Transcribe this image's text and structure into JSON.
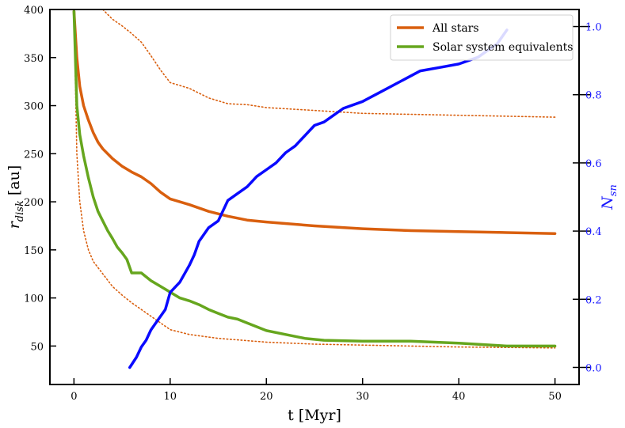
{
  "chart_data": {
    "type": "line",
    "xlabel": "t [Myr]",
    "ylabel_left_main": "r",
    "ylabel_left_sub": "disk",
    "ylabel_left_unit": " [au]",
    "ylabel_right_main": "N",
    "ylabel_right_sub": "sn",
    "xlim": [
      -2.5,
      52.5
    ],
    "ylim_left": [
      10,
      400
    ],
    "ylim_right": [
      -0.05,
      1.05
    ],
    "xticks": [
      0,
      10,
      20,
      30,
      40,
      50
    ],
    "yticks_left": [
      50,
      100,
      150,
      200,
      250,
      300,
      350,
      400
    ],
    "yticks_right": [
      0.0,
      0.2,
      0.4,
      0.6,
      0.8,
      1.0
    ],
    "yticks_right_labels": [
      "0.0",
      "0.2",
      "0.4",
      "0.6",
      "0.8",
      "1.0"
    ],
    "legend": {
      "placement": "top-right",
      "entries": [
        {
          "label": "All stars",
          "color": "#d95f0e"
        },
        {
          "label": "Solar system equivalents",
          "color": "#66a61e"
        }
      ]
    },
    "series": [
      {
        "name": "All stars",
        "axis": "left",
        "color": "#d95f0e",
        "style": "solid",
        "x": [
          0,
          0.3,
          0.6,
          1,
          1.5,
          2,
          2.5,
          3,
          4,
          5,
          6,
          7,
          8,
          9,
          10,
          12,
          14,
          16,
          18,
          20,
          25,
          30,
          35,
          40,
          45,
          50
        ],
        "y": [
          398,
          350,
          320,
          300,
          285,
          272,
          262,
          255,
          245,
          237,
          231,
          226,
          219,
          210,
          203,
          197,
          190,
          185,
          181,
          179,
          175,
          172,
          170,
          169,
          168,
          167
        ]
      },
      {
        "name": "All stars upper bound",
        "axis": "left",
        "color": "#d95f0e",
        "style": "dotted",
        "x": [
          3,
          4,
          5,
          6,
          7,
          8,
          9,
          10,
          12,
          14,
          16,
          18,
          20,
          25,
          30,
          35,
          40,
          45,
          50
        ],
        "y": [
          400,
          390,
          383,
          375,
          366,
          352,
          337,
          324,
          318,
          308,
          302,
          301,
          298,
          295,
          292,
          291,
          290,
          289,
          288
        ]
      },
      {
        "name": "All stars lower bound",
        "axis": "left",
        "color": "#d95f0e",
        "style": "dotted",
        "x": [
          0,
          0.3,
          0.6,
          1,
          1.5,
          2,
          3,
          4,
          5,
          6,
          7,
          8,
          9,
          10,
          12,
          15,
          20,
          25,
          30,
          40,
          50
        ],
        "y": [
          398,
          250,
          200,
          170,
          150,
          138,
          125,
          112,
          103,
          95,
          88,
          81,
          74,
          67,
          62,
          58,
          54,
          52,
          51,
          49,
          48
        ]
      },
      {
        "name": "Solar system equivalents",
        "axis": "left",
        "color": "#66a61e",
        "style": "solid",
        "x": [
          0,
          0.3,
          0.6,
          1,
          1.5,
          2,
          2.5,
          3,
          3.5,
          4,
          4.5,
          5,
          5.5,
          6,
          7,
          8,
          9,
          10,
          11,
          12,
          13,
          14,
          15,
          16,
          17,
          18,
          20,
          22,
          24,
          26,
          30,
          35,
          40,
          45,
          50
        ],
        "y": [
          398,
          300,
          270,
          248,
          225,
          205,
          190,
          180,
          170,
          162,
          153,
          147,
          140,
          126,
          126,
          118,
          112,
          106,
          100,
          97,
          93,
          88,
          84,
          80,
          78,
          74,
          66,
          62,
          58,
          56,
          55,
          55,
          53,
          50,
          50
        ]
      },
      {
        "name": "N_sn",
        "axis": "right",
        "color": "#0a0aff",
        "style": "solid",
        "x": [
          5.8,
          6.5,
          7,
          7.5,
          8,
          8.5,
          9,
          9.5,
          10,
          11,
          12,
          12.5,
          13,
          14,
          15,
          16,
          17,
          18,
          19,
          20,
          21,
          22,
          23,
          24,
          25,
          26,
          27,
          28,
          30,
          32,
          34,
          36,
          38,
          40,
          42,
          43,
          44,
          45
        ],
        "y": [
          0.0,
          0.03,
          0.06,
          0.08,
          0.11,
          0.13,
          0.15,
          0.17,
          0.22,
          0.25,
          0.3,
          0.33,
          0.37,
          0.41,
          0.43,
          0.49,
          0.51,
          0.53,
          0.56,
          0.58,
          0.6,
          0.63,
          0.65,
          0.68,
          0.71,
          0.72,
          0.74,
          0.76,
          0.78,
          0.81,
          0.84,
          0.87,
          0.88,
          0.89,
          0.91,
          0.93,
          0.95,
          0.99
        ]
      }
    ]
  }
}
